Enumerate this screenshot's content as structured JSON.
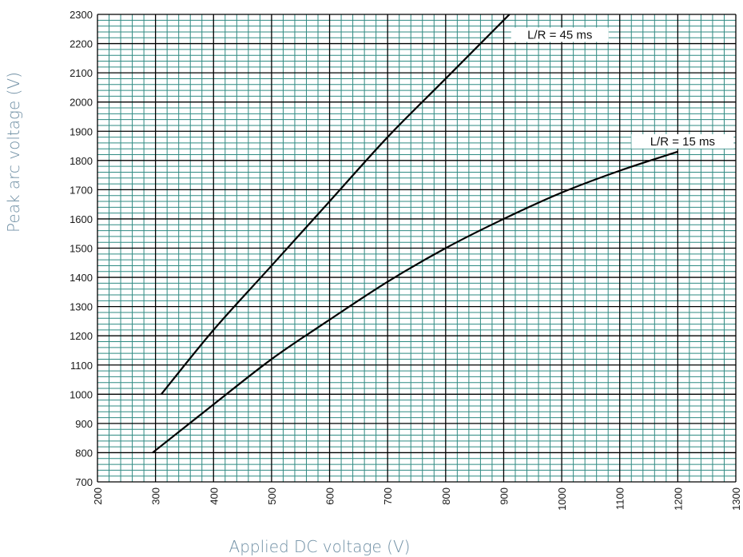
{
  "chart_data": {
    "type": "line",
    "title": "",
    "xlabel": "Applied DC voltage (V)",
    "ylabel": "Peak arc voltage (V)",
    "xlim": [
      200,
      1300
    ],
    "ylim": [
      700,
      2300
    ],
    "x_ticks": [
      200,
      300,
      400,
      500,
      600,
      700,
      800,
      900,
      1000,
      1100,
      1200,
      1300
    ],
    "y_ticks": [
      700,
      800,
      900,
      1000,
      1100,
      1200,
      1300,
      1400,
      1500,
      1600,
      1700,
      1800,
      1900,
      2000,
      2100,
      2200,
      2300
    ],
    "grid": true,
    "legend": "none",
    "colors": {
      "minor_grid": "#2f8a82",
      "major_grid": "#000000",
      "series_line": "#000000",
      "axis_title": "#6f8fa4"
    },
    "series": [
      {
        "name": "L/R = 45 ms",
        "x": [
          310,
          400,
          500,
          600,
          700,
          800,
          910
        ],
        "y": [
          1000,
          1220,
          1440,
          1660,
          1880,
          2080,
          2300
        ]
      },
      {
        "name": "L/R = 15 ms",
        "x": [
          295,
          400,
          500,
          600,
          700,
          800,
          900,
          1000,
          1100,
          1200
        ],
        "y": [
          800,
          965,
          1120,
          1255,
          1385,
          1500,
          1600,
          1690,
          1765,
          1830
        ]
      }
    ],
    "annotations": [
      {
        "text": "L/R = 45 ms",
        "series": 0
      },
      {
        "text": "L/R = 15 ms",
        "series": 1
      }
    ]
  }
}
